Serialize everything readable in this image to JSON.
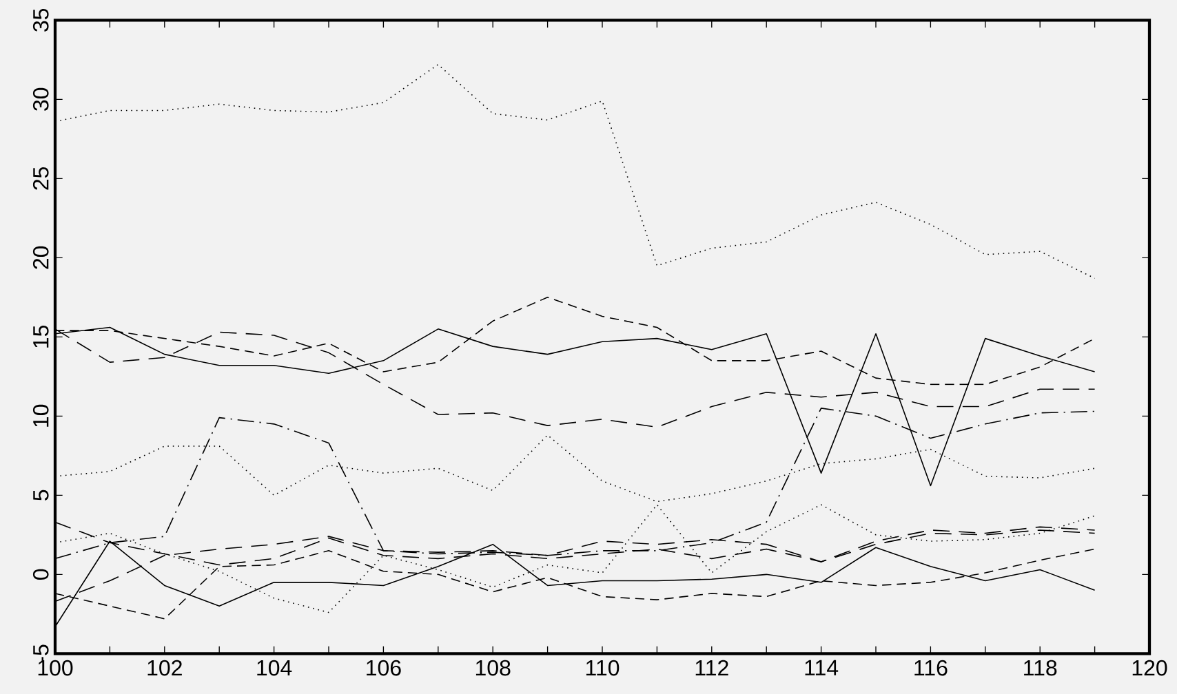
{
  "chart_data": {
    "type": "line",
    "xlim": [
      100,
      120
    ],
    "ylim": [
      -5,
      35
    ],
    "xticks": [
      100,
      102,
      104,
      106,
      108,
      110,
      112,
      114,
      116,
      118,
      120
    ],
    "yticks": [
      -5,
      0,
      5,
      10,
      15,
      20,
      25,
      30,
      35
    ],
    "x": [
      100,
      101,
      102,
      103,
      104,
      105,
      106,
      107,
      108,
      109,
      110,
      111,
      112,
      113,
      114,
      115,
      116,
      117,
      118,
      119
    ],
    "series": [
      {
        "color": "#000000",
        "line_style": "dotted",
        "values": [
          28.6,
          29.3,
          29.3,
          29.7,
          29.3,
          29.2,
          29.8,
          32.2,
          29.1,
          28.7,
          29.9,
          19.5,
          20.6,
          21.0,
          22.7,
          23.5,
          22.1,
          20.2,
          20.4,
          18.7
        ]
      },
      {
        "color": "#000000",
        "line_style": "solid",
        "values": [
          15.2,
          15.6,
          13.9,
          13.2,
          13.2,
          12.7,
          13.5,
          15.5,
          14.4,
          13.9,
          14.7,
          14.9,
          14.2,
          15.2,
          6.4,
          15.2,
          5.6,
          14.9,
          13.8,
          12.8
        ]
      },
      {
        "color": "#000000",
        "line_style": "dashed",
        "values": [
          15.4,
          15.4,
          14.9,
          14.4,
          13.8,
          14.6,
          12.8,
          13.4,
          16.0,
          17.5,
          16.3,
          15.6,
          13.5,
          13.5,
          14.1,
          12.4,
          12.0,
          12.0,
          13.1,
          14.9
        ]
      },
      {
        "color": "#000000",
        "line_style": "longdash",
        "values": [
          15.5,
          13.4,
          13.7,
          15.3,
          15.1,
          14.0,
          12.0,
          10.1,
          10.2,
          9.4,
          9.8,
          9.3,
          10.6,
          11.5,
          11.2,
          11.5,
          10.6,
          10.6,
          11.7,
          11.7
        ]
      },
      {
        "color": "#000000",
        "line_style": "dashdot",
        "values": [
          1.0,
          2.0,
          2.4,
          9.9,
          9.5,
          8.3,
          1.5,
          1.3,
          1.4,
          1.2,
          1.5,
          1.5,
          2.0,
          3.3,
          10.5,
          10.0,
          8.6,
          9.5,
          10.2,
          10.3
        ]
      },
      {
        "color": "#000000",
        "line_style": "dotted",
        "values": [
          6.2,
          6.5,
          8.1,
          8.1,
          5.0,
          6.9,
          6.4,
          6.7,
          5.3,
          8.8,
          5.9,
          4.6,
          5.1,
          5.9,
          7.0,
          7.3,
          7.9,
          6.2,
          6.1,
          6.7
        ]
      },
      {
        "color": "#000000",
        "line_style": "solid",
        "values": [
          -3.3,
          2.1,
          -0.7,
          -2.0,
          -0.5,
          -0.5,
          -0.7,
          0.5,
          1.9,
          -0.7,
          -0.4,
          -0.4,
          -0.3,
          0.0,
          -0.5,
          1.7,
          0.5,
          -0.4,
          0.3,
          -1.0
        ]
      },
      {
        "color": "#000000",
        "line_style": "dashed",
        "values": [
          -1.2,
          -2.0,
          -2.8,
          0.5,
          0.6,
          1.5,
          0.2,
          0.0,
          -1.1,
          -0.2,
          -1.4,
          -1.6,
          -1.2,
          -1.4,
          -0.4,
          -0.7,
          -0.5,
          0.1,
          0.9,
          1.6
        ]
      },
      {
        "color": "#000000",
        "line_style": "longdash",
        "values": [
          -1.7,
          -0.4,
          1.2,
          1.6,
          1.9,
          2.4,
          1.5,
          1.4,
          1.5,
          1.2,
          2.1,
          1.9,
          2.2,
          1.9,
          0.8,
          2.1,
          2.8,
          2.6,
          3.0,
          2.8
        ]
      },
      {
        "color": "#000000",
        "line_style": "longdash",
        "values": [
          3.3,
          2.0,
          1.3,
          0.6,
          1.0,
          2.3,
          1.2,
          1.0,
          1.3,
          1.0,
          1.3,
          1.6,
          1.0,
          1.6,
          0.8,
          1.9,
          2.6,
          2.5,
          2.8,
          2.6
        ]
      },
      {
        "color": "#000000",
        "line_style": "dotted",
        "values": [
          2.0,
          2.6,
          1.3,
          0.2,
          -1.5,
          -2.4,
          1.2,
          0.3,
          -0.8,
          0.6,
          0.1,
          4.4,
          0.1,
          2.7,
          4.4,
          2.5,
          2.1,
          2.2,
          2.6,
          3.7
        ]
      }
    ]
  }
}
